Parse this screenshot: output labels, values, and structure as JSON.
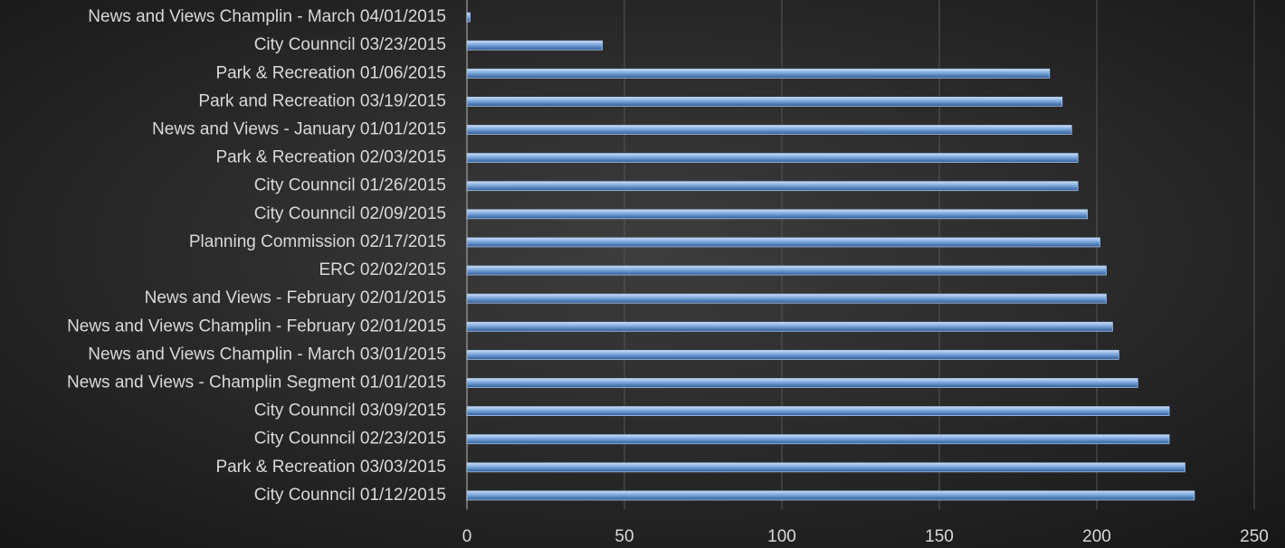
{
  "chart_data": {
    "type": "bar",
    "orientation": "horizontal",
    "categories": [
      "News and Views Champlin - March 04/01/2015",
      "City Counncil 03/23/2015",
      "Park & Recreation 01/06/2015",
      "Park and Recreation 03/19/2015",
      "News and Views - January 01/01/2015",
      "Park & Recreation 02/03/2015",
      "City Counncil 01/26/2015",
      "City Counncil 02/09/2015",
      "Planning Commission 02/17/2015",
      "ERC 02/02/2015",
      "News and Views - February 02/01/2015",
      "News and Views Champlin - February 02/01/2015",
      "News and Views Champlin - March 03/01/2015",
      "News and Views - Champlin Segment 01/01/2015",
      "City Counncil 03/09/2015",
      "City Counncil 02/23/2015",
      "Park & Recreation 03/03/2015",
      "City Counncil 01/12/2015"
    ],
    "values": [
      1,
      43,
      185,
      189,
      192,
      194,
      194,
      197,
      201,
      203,
      203,
      205,
      207,
      213,
      223,
      223,
      228,
      231
    ],
    "color": "#5b8fd0",
    "xlim": [
      0,
      250
    ],
    "xticks": [
      0,
      50,
      100,
      150,
      200,
      250
    ],
    "grid": true
  }
}
